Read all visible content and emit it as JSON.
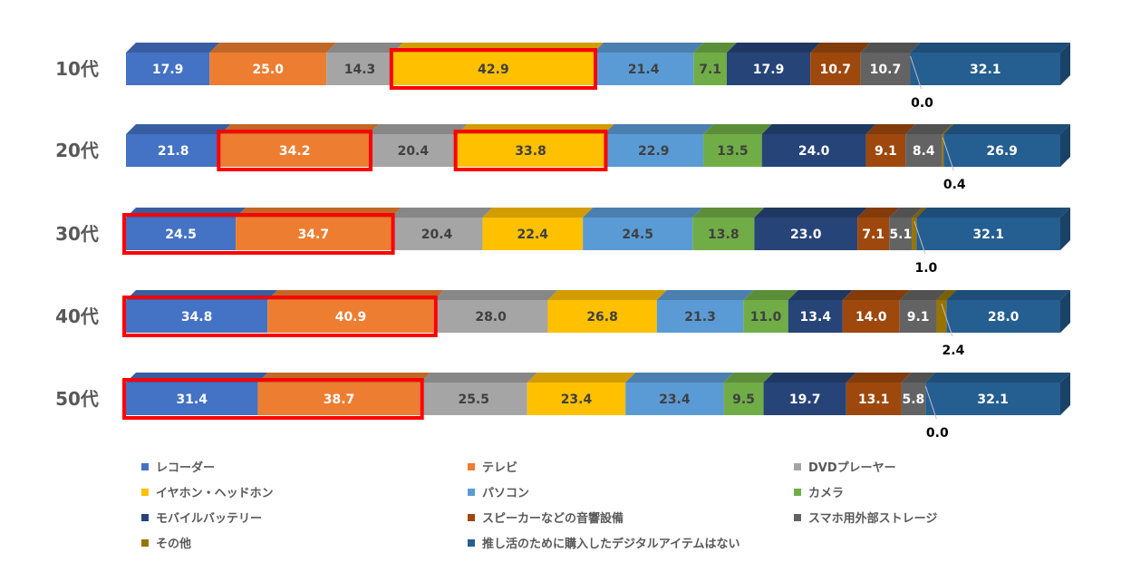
{
  "chart_data": {
    "type": "bar",
    "orientation": "horizontal",
    "stacked": true,
    "categories": [
      "10代",
      "20代",
      "30代",
      "40代",
      "50代"
    ],
    "series": [
      {
        "name": "レコーダー",
        "color": "#4472C4",
        "values": [
          17.9,
          21.8,
          24.5,
          34.8,
          31.4
        ]
      },
      {
        "name": "テレビ",
        "color": "#ED7D31",
        "values": [
          25.0,
          34.2,
          34.7,
          40.9,
          38.7
        ]
      },
      {
        "name": "DVDプレーヤー",
        "color": "#A5A5A5",
        "values": [
          14.3,
          20.4,
          20.4,
          28.0,
          25.5
        ]
      },
      {
        "name": "イヤホン・ヘッドホン",
        "color": "#FFC000",
        "values": [
          42.9,
          33.8,
          22.4,
          26.8,
          23.4
        ]
      },
      {
        "name": "パソコン",
        "color": "#5B9BD5",
        "values": [
          21.4,
          22.9,
          24.5,
          21.3,
          23.4
        ]
      },
      {
        "name": "カメラ",
        "color": "#70AD47",
        "values": [
          7.1,
          13.5,
          13.8,
          11.0,
          9.5
        ]
      },
      {
        "name": "モバイルバッテリー",
        "color": "#264478",
        "values": [
          17.9,
          24.0,
          23.0,
          13.4,
          19.7
        ]
      },
      {
        "name": "スピーカーなどの音響設備",
        "color": "#9E480E",
        "values": [
          10.7,
          9.1,
          7.1,
          14.0,
          13.1
        ]
      },
      {
        "name": "スマホ用外部ストレージ",
        "color": "#636363",
        "values": [
          10.7,
          8.4,
          5.1,
          9.1,
          5.8
        ]
      },
      {
        "name": "その他",
        "color": "#997300",
        "values": [
          0.0,
          0.4,
          1.0,
          2.4,
          0.0
        ]
      },
      {
        "name": "推し活のために購入したデジタルアイテムはない",
        "color": "#255E91",
        "values": [
          32.1,
          26.9,
          32.1,
          28.0,
          32.1
        ]
      }
    ],
    "data_labels": [
      [
        "17.9",
        "25.0",
        "14.3",
        "42.9",
        "21.4",
        "7.1",
        "17.9",
        "10.7",
        "10.7",
        "0.0",
        "32.1"
      ],
      [
        "21.8",
        "34.2",
        "20.4",
        "33.8",
        "22.9",
        "13.5",
        "24.0",
        "9.1",
        "8.4",
        "0.4",
        "26.9"
      ],
      [
        "24.5",
        "34.7",
        "20.4",
        "22.4",
        "24.5",
        "13.8",
        "23.0",
        "7.1",
        "5.1",
        "1.0",
        "32.1"
      ],
      [
        "34.8",
        "40.9",
        "28.0",
        "26.8",
        "21.3",
        "11.0",
        "13.4",
        "14.0",
        "9.1",
        "2.4",
        "28.0"
      ],
      [
        "31.4",
        "38.7",
        "25.5",
        "23.4",
        "23.4",
        "9.5",
        "19.7",
        "13.1",
        "5.8",
        "0.0",
        "32.1"
      ]
    ],
    "highlights": [
      {
        "category": "10代",
        "series": [
          "イヤホン・ヘッドホン"
        ]
      },
      {
        "category": "20代",
        "series": [
          "テレビ"
        ]
      },
      {
        "category": "20代",
        "series": [
          "イヤホン・ヘッドホン"
        ]
      },
      {
        "category": "30代",
        "series": [
          "レコーダー",
          "テレビ"
        ]
      },
      {
        "category": "40代",
        "series": [
          "レコーダー",
          "テレビ"
        ]
      },
      {
        "category": "50代",
        "series": [
          "レコーダー",
          "テレビ"
        ]
      }
    ],
    "highlight_color": "#FF0000",
    "legend_position": "bottom",
    "grid": false,
    "title": "",
    "xlabel": "",
    "ylabel": ""
  }
}
